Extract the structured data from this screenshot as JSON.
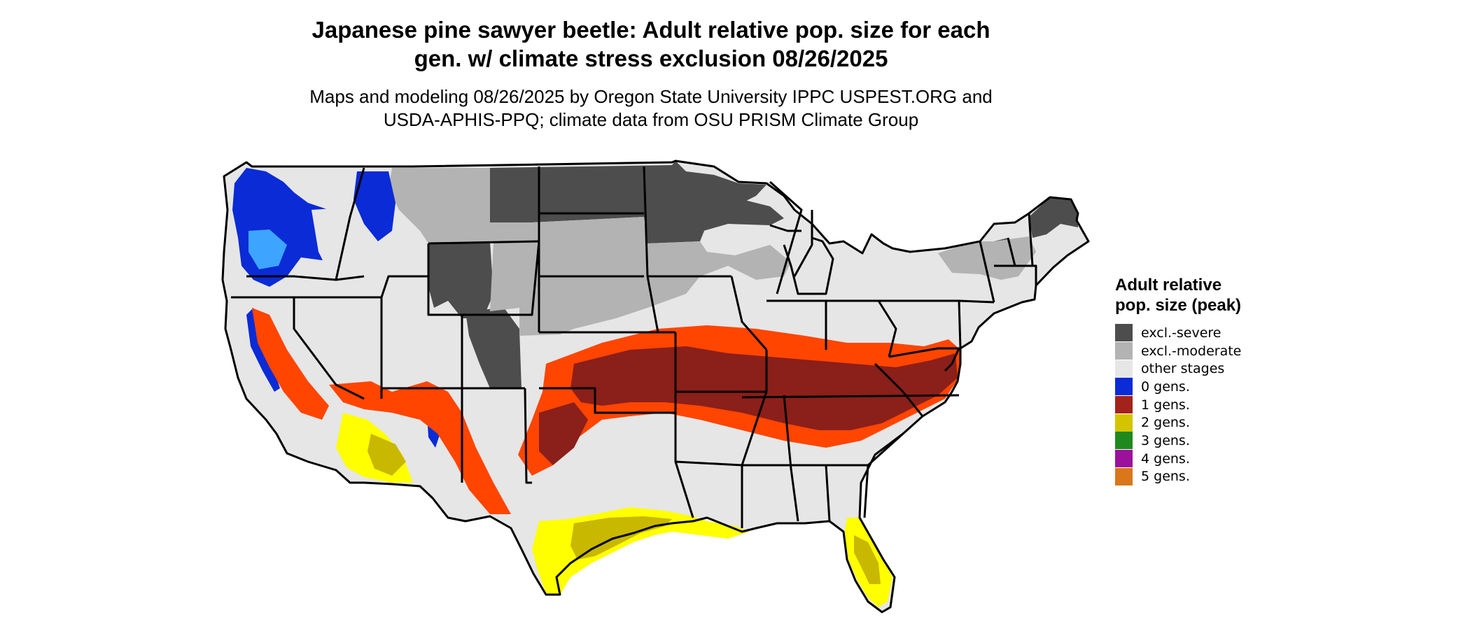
{
  "title": {
    "line1": "Japanese pine sawyer beetle: Adult relative pop. size for each",
    "line2": "gen. w/ climate stress exclusion 08/26/2025"
  },
  "subtitle": {
    "line1": "Maps and modeling 08/26/2025 by Oregon State University IPPC USPEST.ORG and",
    "line2": "USDA-APHIS-PPQ; climate data from OSU PRISM Climate Group"
  },
  "legend": {
    "title": "Adult relative pop. size (peak)",
    "items": [
      {
        "label": "excl.-severe",
        "color": "#4d4d4d"
      },
      {
        "label": "excl.-moderate",
        "color": "#b3b3b3"
      },
      {
        "label": "other stages",
        "color": "#e6e6e6"
      },
      {
        "label": "0 gens.",
        "color": "#0a2bd6"
      },
      {
        "label": "1 gens.",
        "color": "#a3221b"
      },
      {
        "label": "2 gens.",
        "color": "#d4c400"
      },
      {
        "label": "3 gens.",
        "color": "#1e8a1e"
      },
      {
        "label": "4 gens.",
        "color": "#9b119b"
      },
      {
        "label": "5 gens.",
        "color": "#d9771a"
      }
    ]
  },
  "map_colors": {
    "severe": "#4d4d4d",
    "moderate": "#b3b3b3",
    "other": "#e6e6e6",
    "zero": "#0a2bd6",
    "zero_light": "#3da5ff",
    "one": "#8b1f1a",
    "one_bright": "#ff4500",
    "two": "#c9b800",
    "two_bright": "#ffff00",
    "border": "#000000"
  }
}
